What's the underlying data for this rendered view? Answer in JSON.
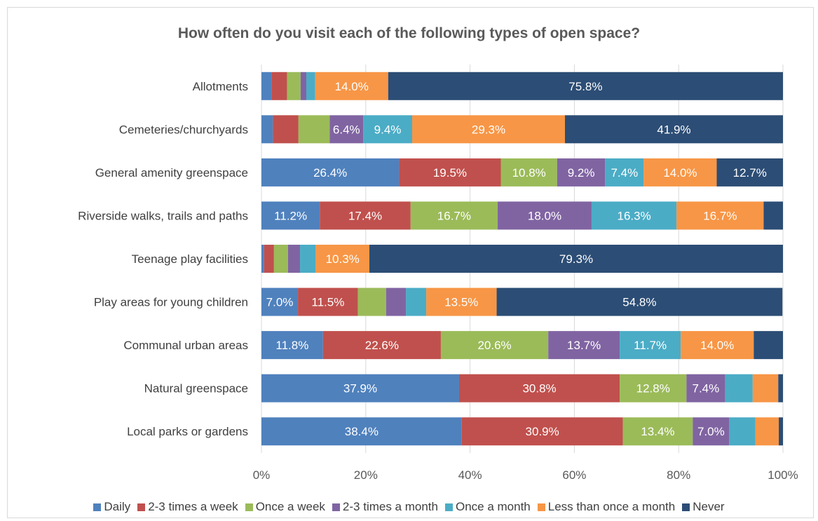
{
  "chart_data": {
    "type": "bar",
    "orientation": "horizontal",
    "stacked": "percent",
    "title": "How often do you visit each of the following types of open space?",
    "xlabel": "",
    "ylabel": "",
    "xlim": [
      0,
      100
    ],
    "x_ticks": [
      "0%",
      "20%",
      "40%",
      "60%",
      "80%",
      "100%"
    ],
    "grid": true,
    "legend_position": "bottom",
    "categories": [
      "Allotments",
      "Cemeteries/churchyards",
      "General amenity greenspace",
      "Riverside walks, trails and paths",
      "Teenage play facilities",
      "Play areas for young children",
      "Communal urban areas",
      "Natural greenspace",
      "Local parks or gardens"
    ],
    "series": [
      {
        "name": "Daily",
        "color": "#4f81bd",
        "values": [
          1.9,
          2.2,
          26.4,
          11.2,
          0.5,
          7.0,
          11.8,
          37.9,
          38.4
        ],
        "labels": [
          "",
          "",
          "26.4%",
          "11.2%",
          "",
          "7.0%",
          "11.8%",
          "37.9%",
          "38.4%"
        ]
      },
      {
        "name": "2-3 times a week",
        "color": "#c0504d",
        "values": [
          3.0,
          4.9,
          19.5,
          17.4,
          1.9,
          11.5,
          22.6,
          30.8,
          30.9
        ],
        "labels": [
          "",
          "",
          "19.5%",
          "17.4%",
          "",
          "11.5%",
          "22.6%",
          "30.8%",
          "30.9%"
        ]
      },
      {
        "name": "Once a week",
        "color": "#9bbb59",
        "values": [
          2.6,
          6.0,
          10.8,
          16.7,
          2.7,
          5.4,
          20.6,
          12.8,
          13.4
        ],
        "labels": [
          "",
          "",
          "10.8%",
          "16.7%",
          "",
          "",
          "20.6%",
          "12.8%",
          "13.4%"
        ]
      },
      {
        "name": "2-3 times a month",
        "color": "#8064a2",
        "values": [
          1.1,
          6.4,
          9.2,
          18.0,
          2.3,
          3.8,
          13.7,
          7.4,
          7.0
        ],
        "labels": [
          "",
          "6.4%",
          "9.2%",
          "18.0%",
          "",
          "",
          "13.7%",
          "7.4%",
          "7.0%"
        ]
      },
      {
        "name": "Once a month",
        "color": "#4bacc6",
        "values": [
          1.7,
          9.4,
          7.4,
          16.3,
          3.0,
          3.9,
          11.7,
          5.3,
          5.0
        ],
        "labels": [
          "",
          "9.4%",
          "7.4%",
          "16.3%",
          "",
          "",
          "11.7%",
          "",
          ""
        ]
      },
      {
        "name": "Less than once a month",
        "color": "#f79646",
        "values": [
          14.0,
          29.3,
          14.0,
          16.7,
          10.3,
          13.5,
          14.0,
          4.9,
          4.5
        ],
        "labels": [
          "14.0%",
          "29.3%",
          "14.0%",
          "16.7%",
          "10.3%",
          "13.5%",
          "14.0%",
          "",
          ""
        ]
      },
      {
        "name": "Never",
        "color": "#2c4d75",
        "values": [
          75.8,
          41.9,
          12.7,
          3.7,
          79.3,
          54.8,
          5.6,
          0.9,
          0.8
        ],
        "labels": [
          "75.8%",
          "41.9%",
          "12.7%",
          "",
          "79.3%",
          "54.8%",
          "",
          "",
          ""
        ]
      }
    ]
  }
}
